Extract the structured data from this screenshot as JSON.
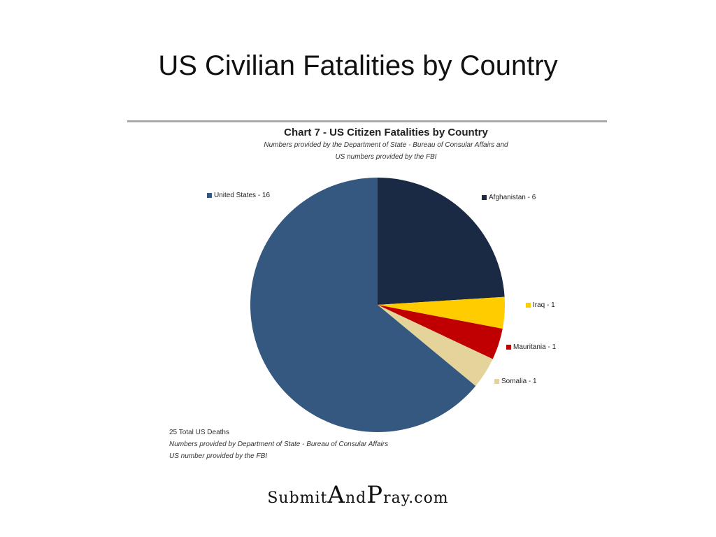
{
  "slide": {
    "title": "US Civilian Fatalities by Country"
  },
  "chart_data": {
    "type": "pie",
    "title": "Chart 7 - US Citizen Fatalities by Country",
    "subtitle_lines": [
      "Numbers provided by the Department of State - Bureau of Consular Affairs and",
      "US numbers provided by the FBI"
    ],
    "slices": [
      {
        "label": "Afghanistan - 6",
        "name": "Afghanistan",
        "value": 6,
        "color": "#1a2a44"
      },
      {
        "label": "Iraq - 1",
        "name": "Iraq",
        "value": 1,
        "color": "#ffcc00"
      },
      {
        "label": "Mauritania - 1",
        "name": "Mauritania",
        "value": 1,
        "color": "#c00000"
      },
      {
        "label": "Somalia - 1",
        "name": "Somalia",
        "value": 1,
        "color": "#e5d49a"
      },
      {
        "label": "United States - 16",
        "name": "United States",
        "value": 16,
        "color": "#34587f"
      }
    ],
    "footnotes": [
      "25 Total US Deaths",
      "Numbers provided by Department of State - Bureau of Consular Affairs",
      "US number provided by the FBI"
    ]
  },
  "logo": {
    "text": "SubmitAndPray.com"
  }
}
